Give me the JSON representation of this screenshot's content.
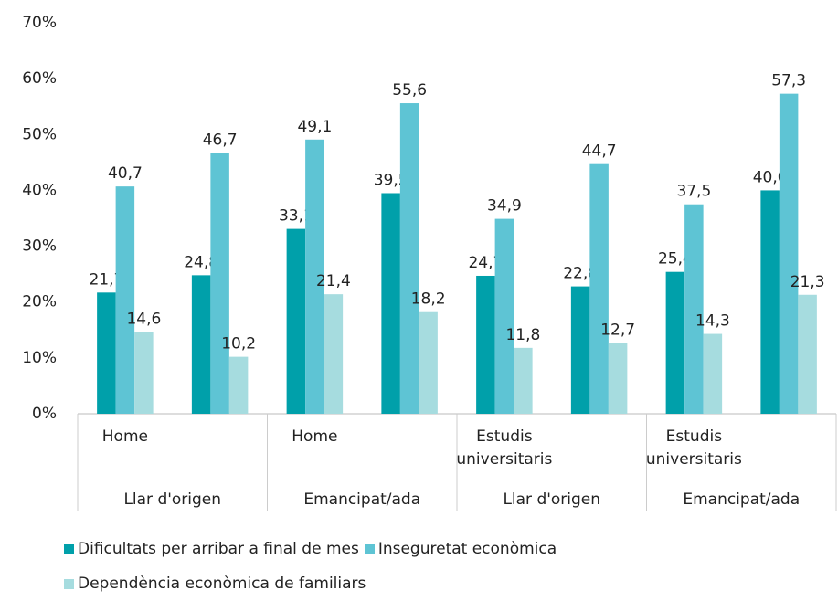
{
  "chart_data": {
    "type": "bar",
    "categories": [
      "Home",
      null,
      "Home",
      null,
      "Estudis universitaris",
      null,
      "Estudis universitaris",
      null
    ],
    "groups": [
      "Llar d'origen",
      "Emancipat/ada",
      "Llar d'origen",
      "Emancipat/ada"
    ],
    "series": [
      {
        "name": "Dificultats per arribar a final de mes",
        "color": "#00a0aa",
        "values": [
          21.7,
          24.8,
          33.1,
          39.5,
          24.7,
          22.8,
          25.4,
          40.0
        ],
        "value_labels": [
          "21,7",
          "24,8",
          "33,1",
          "39,5",
          "24,7",
          "22,8",
          "25,4",
          "40,0"
        ]
      },
      {
        "name": "Inseguretat econòmica",
        "color": "#5ec4d4",
        "values": [
          40.7,
          46.7,
          49.1,
          55.6,
          34.9,
          44.7,
          37.5,
          57.3
        ],
        "value_labels": [
          "40,7",
          "46,7",
          "49,1",
          "55,6",
          "34,9",
          "44,7",
          "37,5",
          "57,3"
        ]
      },
      {
        "name": "Dependència econòmica de familiars",
        "color": "#a6dcdf",
        "values": [
          14.6,
          10.2,
          21.4,
          18.2,
          11.8,
          12.7,
          14.3,
          21.3
        ],
        "value_labels": [
          "14,6",
          "10,2",
          "21,4",
          "18,2",
          "11,8",
          "12,7",
          "14,3",
          "21,3"
        ]
      }
    ],
    "ylim": [
      0,
      70
    ],
    "yticks": [
      {
        "value": 0,
        "label": "0%"
      },
      {
        "value": 10,
        "label": "10%"
      },
      {
        "value": 20,
        "label": "20%"
      },
      {
        "value": 30,
        "label": "30%"
      },
      {
        "value": 40,
        "label": "40%"
      },
      {
        "value": 50,
        "label": "50%"
      },
      {
        "value": 60,
        "label": "60%"
      },
      {
        "value": 70,
        "label": "70%"
      }
    ],
    "grid": false
  }
}
